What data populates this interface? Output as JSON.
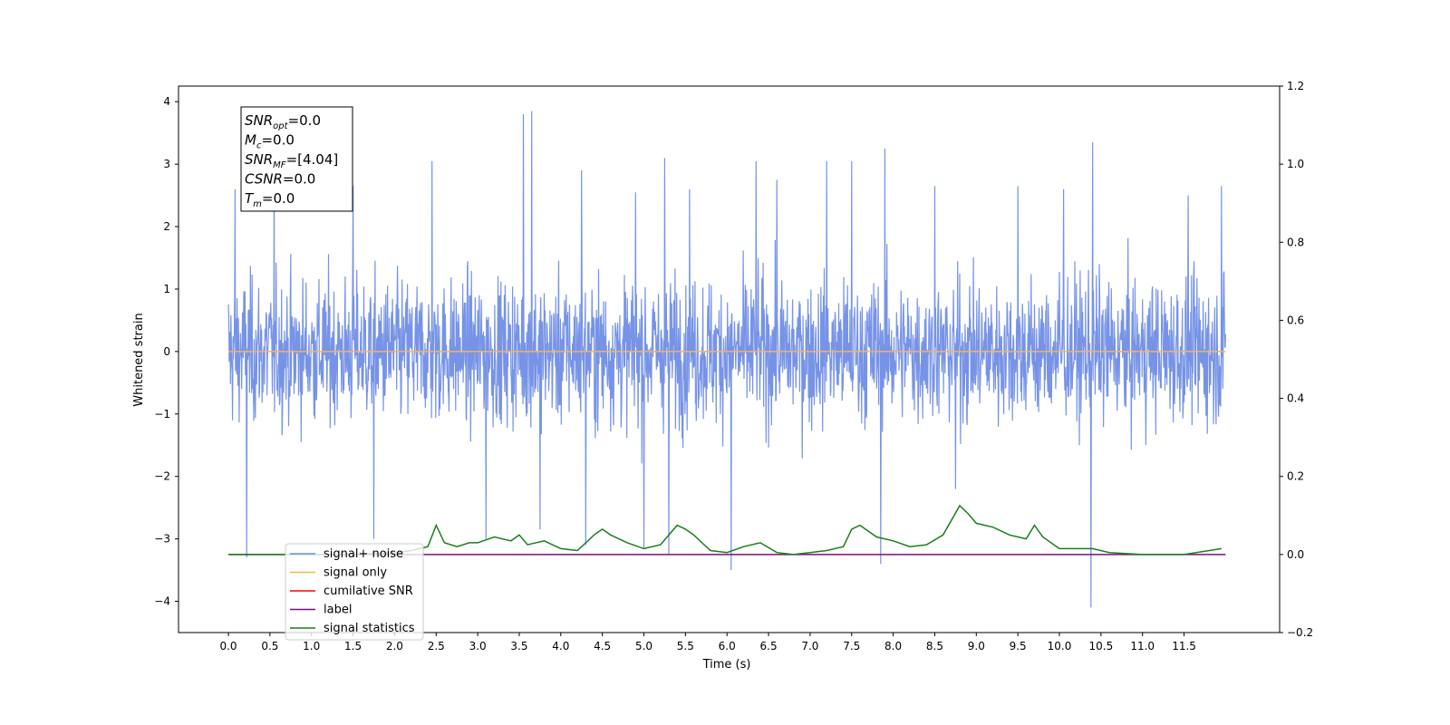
{
  "chart_data": {
    "type": "line",
    "title": "",
    "xlabel": "Time (s)",
    "ylabel": "Whitened strain",
    "xlim": [
      -0.6,
      12.65
    ],
    "ylim": [
      -4.5,
      4.25
    ],
    "y2lim": [
      -0.2,
      1.2
    ],
    "xticks": [
      "0.0",
      "0.5",
      "1.0",
      "1.5",
      "2.0",
      "2.5",
      "3.0",
      "3.5",
      "4.0",
      "4.5",
      "5.0",
      "5.5",
      "6.0",
      "6.5",
      "7.0",
      "7.5",
      "8.0",
      "8.5",
      "9.0",
      "9.5",
      "10.0",
      "10.5",
      "11.0",
      "11.5"
    ],
    "yticks": [
      "4",
      "3",
      "2",
      "1",
      "0",
      "−1",
      "−2",
      "−3",
      "−4"
    ],
    "y2ticks": [
      "1.2",
      "1.0",
      "0.8",
      "0.6",
      "0.4",
      "0.2",
      "0.0",
      "−0.2"
    ],
    "grid": false,
    "legend_position": "lower-left",
    "annotation": {
      "lines": [
        {
          "sym": "SNR",
          "sub": "opt",
          "val": "=0.0"
        },
        {
          "sym": "M",
          "sub": "c",
          "val": "=0.0"
        },
        {
          "sym": "SNR",
          "sub": "MF",
          "val": "=[4.04]"
        },
        {
          "sym": "CSNR",
          "sub": "",
          "val": "=0.0"
        },
        {
          "sym": "T",
          "sub": "m",
          "val": "=0.0"
        }
      ]
    },
    "series": [
      {
        "name": "signal+ noise",
        "axis": "left",
        "color": "#6f8de6",
        "description": "whitened noise, x from 0.0 to 12.0",
        "x_range": [
          0.0,
          12.0
        ],
        "envelope_typical": [
          -2.0,
          2.3
        ],
        "spikes": [
          [
            0.22,
            -3.3
          ],
          [
            0.08,
            2.6
          ],
          [
            0.55,
            2.85
          ],
          [
            1.5,
            2.65
          ],
          [
            1.75,
            -3.0
          ],
          [
            2.45,
            3.05
          ],
          [
            3.1,
            -3.0
          ],
          [
            3.55,
            3.8
          ],
          [
            3.65,
            3.85
          ],
          [
            3.75,
            -2.85
          ],
          [
            4.25,
            2.9
          ],
          [
            4.3,
            -3.1
          ],
          [
            4.9,
            2.55
          ],
          [
            5.0,
            -3.15
          ],
          [
            5.25,
            3.1
          ],
          [
            5.3,
            -3.25
          ],
          [
            5.55,
            2.6
          ],
          [
            6.05,
            -3.5
          ],
          [
            6.35,
            3.05
          ],
          [
            6.6,
            2.75
          ],
          [
            7.2,
            3.05
          ],
          [
            7.5,
            3.05
          ],
          [
            7.9,
            3.25
          ],
          [
            7.85,
            -3.4
          ],
          [
            8.5,
            2.65
          ],
          [
            8.75,
            -2.2
          ],
          [
            9.5,
            2.65
          ],
          [
            10.05,
            2.6
          ],
          [
            10.4,
            3.35
          ],
          [
            10.38,
            -4.1
          ],
          [
            11.55,
            2.5
          ],
          [
            11.95,
            2.65
          ]
        ]
      },
      {
        "name": "signal only",
        "axis": "left",
        "color": "#ffb14e",
        "x": [
          0.0,
          12.0
        ],
        "y": [
          0.0,
          0.0
        ]
      },
      {
        "name": "cumilative SNR",
        "axis": "right",
        "color": "#ff0000",
        "x": [],
        "y": []
      },
      {
        "name": "label",
        "axis": "right",
        "color": "#7b0e7b",
        "x": [
          0.0,
          12.0
        ],
        "y": [
          0.0,
          0.0
        ]
      },
      {
        "name": "signal statistics",
        "axis": "right",
        "color": "#1a7f1a",
        "x": [
          0.0,
          0.5,
          1.0,
          1.5,
          2.0,
          2.2,
          2.4,
          2.5,
          2.6,
          2.75,
          2.9,
          3.0,
          3.2,
          3.4,
          3.5,
          3.6,
          3.8,
          4.0,
          4.2,
          4.4,
          4.5,
          4.6,
          4.8,
          5.0,
          5.2,
          5.4,
          5.5,
          5.6,
          5.8,
          6.0,
          6.2,
          6.4,
          6.6,
          6.8,
          7.0,
          7.2,
          7.4,
          7.5,
          7.6,
          7.8,
          8.0,
          8.2,
          8.4,
          8.6,
          8.8,
          8.9,
          9.0,
          9.2,
          9.4,
          9.6,
          9.7,
          9.8,
          10.0,
          10.2,
          10.4,
          10.6,
          11.0,
          11.5,
          11.95
        ],
        "y": [
          0.0,
          0.0,
          0.0,
          0.0,
          0.005,
          0.01,
          0.02,
          0.075,
          0.03,
          0.02,
          0.03,
          0.03,
          0.045,
          0.035,
          0.05,
          0.025,
          0.035,
          0.015,
          0.01,
          0.05,
          0.065,
          0.05,
          0.03,
          0.015,
          0.025,
          0.075,
          0.065,
          0.05,
          0.01,
          0.005,
          0.02,
          0.03,
          0.005,
          0.0,
          0.005,
          0.01,
          0.02,
          0.065,
          0.075,
          0.045,
          0.035,
          0.02,
          0.025,
          0.05,
          0.125,
          0.105,
          0.08,
          0.07,
          0.05,
          0.04,
          0.075,
          0.045,
          0.015,
          0.015,
          0.015,
          0.005,
          0.0,
          0.0,
          0.015
        ]
      }
    ]
  }
}
